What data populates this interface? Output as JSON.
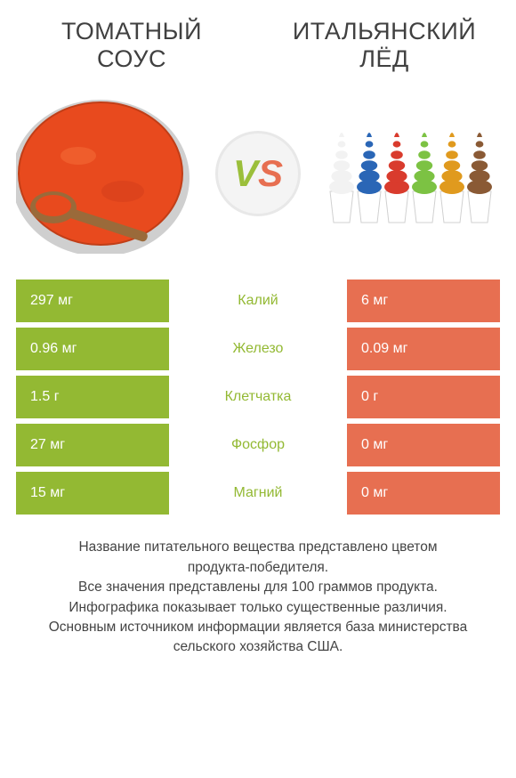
{
  "titles": {
    "left_line1": "ТОМАТНЫЙ",
    "left_line2": "СОУС",
    "right_line1": "ИТАЛЬЯНСКИЙ",
    "right_line2": "ЛЁД"
  },
  "vs": {
    "v": "V",
    "s": "S"
  },
  "colors": {
    "green": "#93b933",
    "orange": "#e76f51",
    "label_fg": "#93b933",
    "bg": "#ffffff",
    "sauce": "#e84a1e",
    "pot": "#d8d8d8",
    "spoon": "#9a6a3a"
  },
  "nutrients": {
    "type": "infographic-table",
    "rows": [
      {
        "left": "297 мг",
        "label": "Калий",
        "right": "6 мг",
        "winner": "left"
      },
      {
        "left": "0.96 мг",
        "label": "Железо",
        "right": "0.09 мг",
        "winner": "left"
      },
      {
        "left": "1.5 г",
        "label": "Клетчатка",
        "right": "0 г",
        "winner": "left"
      },
      {
        "left": "27 мг",
        "label": "Фосфор",
        "right": "0 мг",
        "winner": "left"
      },
      {
        "left": "15 мг",
        "label": "Магний",
        "right": "0 мг",
        "winner": "left"
      }
    ]
  },
  "ice_colors": [
    "#f2f2f2",
    "#2a66b6",
    "#d93b2d",
    "#7cc243",
    "#e09a1e",
    "#8a5a35"
  ],
  "footnote": {
    "l1": "Название питательного вещества представлено цветом",
    "l2": "продукта-победителя.",
    "l3": "Все значения представлены для 100 граммов продукта.",
    "l4": "Инфографика показывает только существенные различия.",
    "l5": "Основным источником информации является база министерства",
    "l6": "сельского хозяйства США."
  }
}
